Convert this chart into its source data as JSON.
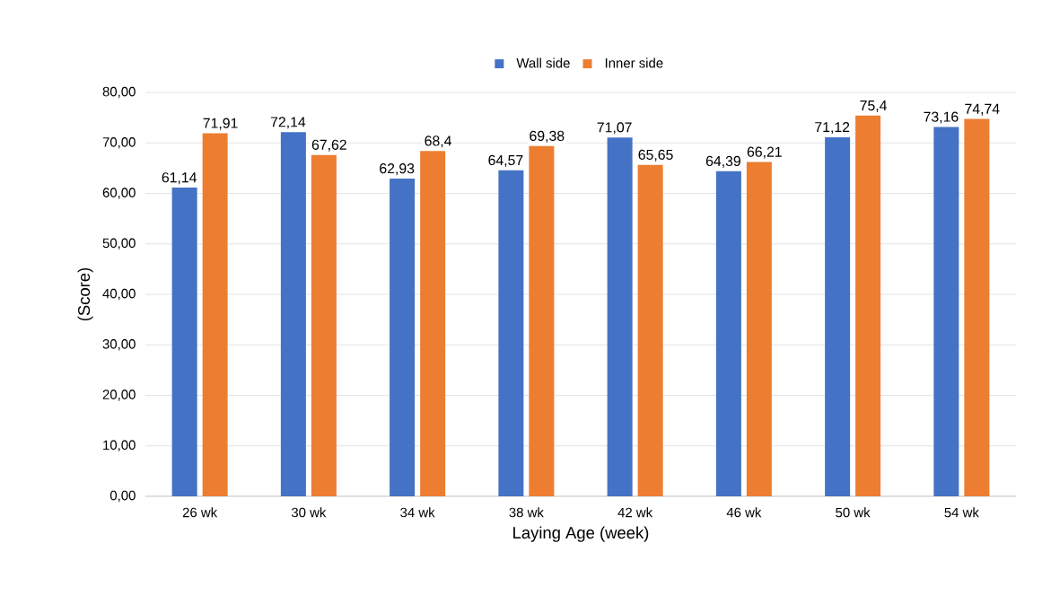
{
  "chart_data": {
    "type": "bar",
    "xlabel": "Laying Age (week)",
    "ylabel": "(Score)",
    "categories": [
      "26 wk",
      "30 wk",
      "34 wk",
      "38 wk",
      "42 wk",
      "46 wk",
      "50 wk",
      "54 wk"
    ],
    "series": [
      {
        "name": "Wall side",
        "color": "#4472c4",
        "values": [
          61.14,
          72.14,
          62.93,
          64.57,
          71.07,
          64.39,
          71.12,
          73.16
        ],
        "value_labels": [
          "61,14",
          "72,14",
          "62,93",
          "64,57",
          "71,07",
          "64,39",
          "71,12",
          "73,16"
        ]
      },
      {
        "name": "Inner side",
        "color": "#ed7d31",
        "values": [
          71.91,
          67.62,
          68.4,
          69.38,
          65.65,
          66.21,
          75.4,
          74.74
        ],
        "value_labels": [
          "71,91",
          "67,62",
          "68,4",
          "69,38",
          "65,65",
          "66,21",
          "75,4",
          "74,74"
        ]
      }
    ],
    "ylim": [
      0,
      80
    ],
    "yticks": [
      {
        "value": 0,
        "label": "0,00"
      },
      {
        "value": 10,
        "label": "10,00"
      },
      {
        "value": 20,
        "label": "20,00"
      },
      {
        "value": 30,
        "label": "30,00"
      },
      {
        "value": 40,
        "label": "40,00"
      },
      {
        "value": 50,
        "label": "50,00"
      },
      {
        "value": 60,
        "label": "60,00"
      },
      {
        "value": 70,
        "label": "70,00"
      },
      {
        "value": 80,
        "label": "80,00"
      }
    ],
    "grid": "y",
    "legend": "top"
  }
}
